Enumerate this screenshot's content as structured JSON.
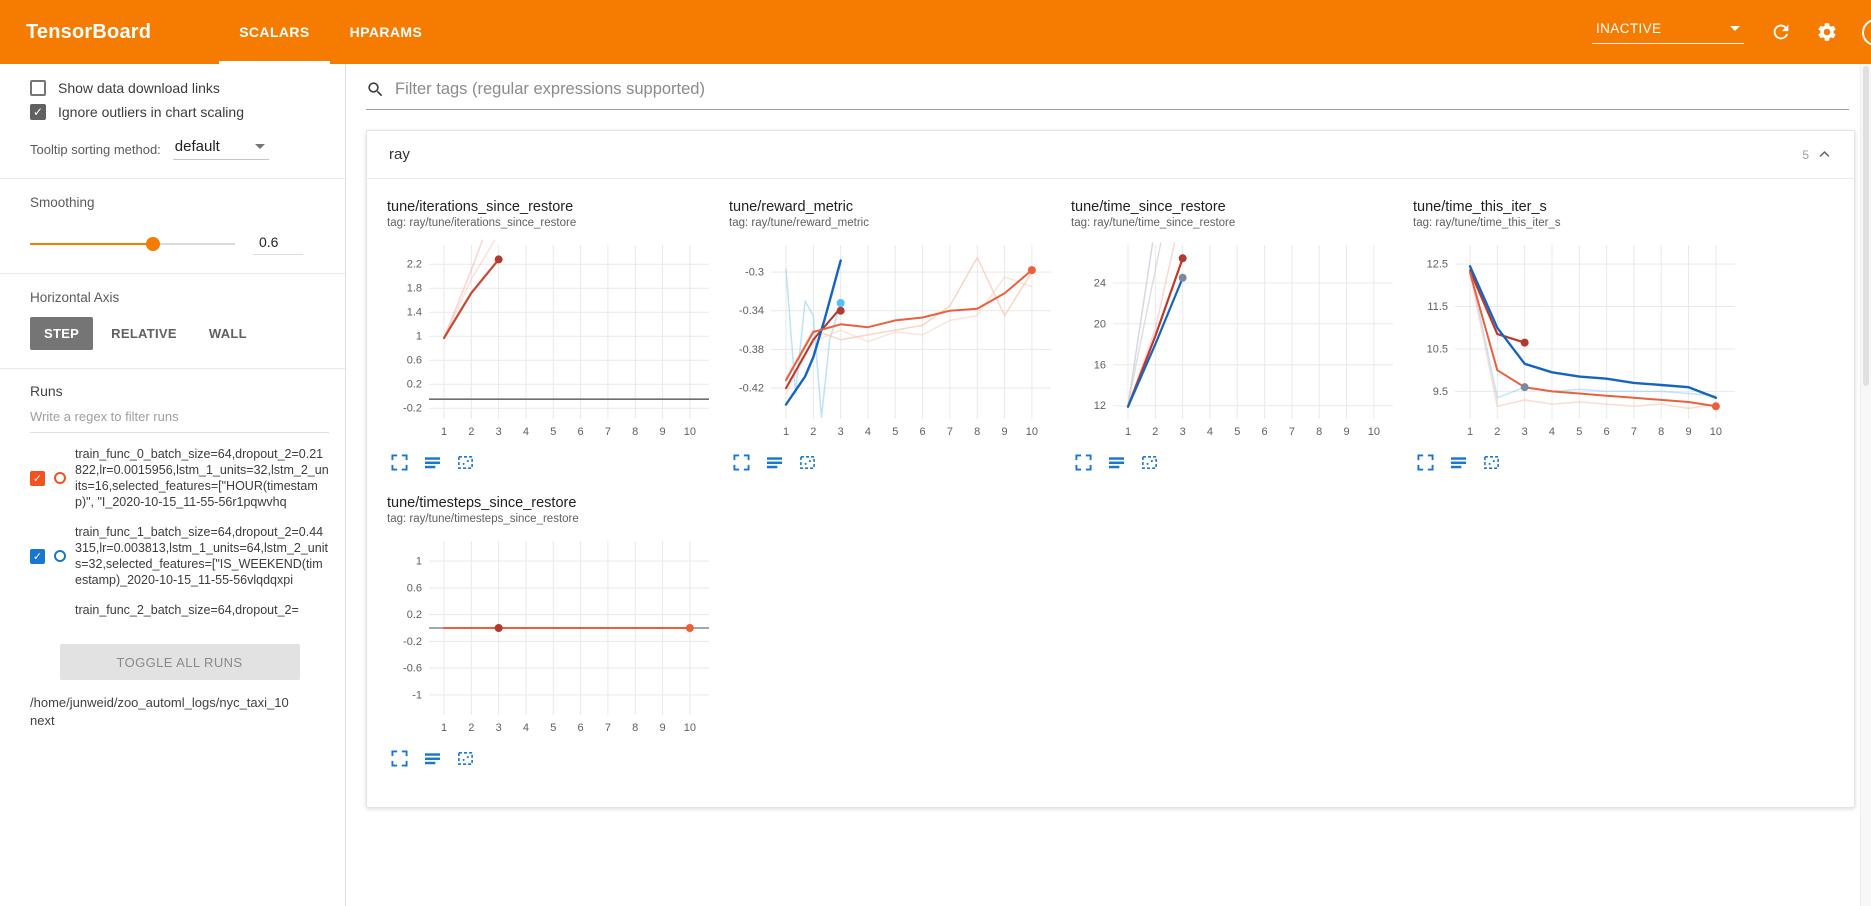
{
  "header": {
    "brand": "TensorBoard",
    "tabs": [
      {
        "label": "SCALARS"
      },
      {
        "label": "HPARAMS"
      }
    ],
    "active_tab": "SCALARS",
    "reload_dropdown": "INACTIVE",
    "help_glyph": "?"
  },
  "sidebar": {
    "show_download_label": "Show data download links",
    "ignore_outliers_label": "Ignore outliers in chart scaling",
    "tooltip_label": "Tooltip sorting method:",
    "tooltip_value": "default",
    "smoothing_label": "Smoothing",
    "smoothing_value": "0.6",
    "axis_label": "Horizontal Axis",
    "axis_options": [
      {
        "label": "STEP"
      },
      {
        "label": "RELATIVE"
      },
      {
        "label": "WALL"
      }
    ],
    "axis_selected": "STEP",
    "runs_label": "Runs",
    "runs_filter_placeholder": "Write a regex to filter runs",
    "runs": [
      {
        "label": "train_func_0_batch_size=64,dropout_2=0.21822,lr=0.0015956,lstm_1_units=32,lstm_2_units=16,selected_features=[\"HOUR(timestamp)\", \"I_2020-10-15_11-55-56r1pqwvhq",
        "checked": true,
        "color": "#f4511e"
      },
      {
        "label": "train_func_1_batch_size=64,dropout_2=0.44315,lr=0.003813,lstm_1_units=64,lstm_2_units=32,selected_features=[\"IS_WEEKEND(timestamp)_2020-10-15_11-55-56vlqdqxpi",
        "checked": true,
        "color": "#1976d2"
      },
      {
        "label": "train_func_2_batch_size=64,dropout_2=",
        "checked": null,
        "color": null
      }
    ],
    "toggle_all_label": "TOGGLE ALL RUNS",
    "log_dir": "/home/junweid/zoo_automl_logs/nyc_taxi_10next"
  },
  "main": {
    "filter_placeholder": "Filter tags (regular expressions supported)",
    "section": {
      "title": "ray",
      "count": "5"
    }
  },
  "chart_data": [
    {
      "type": "line",
      "title": "tune/iterations_since_restore",
      "tag": "tag: ray/tune/iterations_since_restore",
      "xticks": [
        1,
        2,
        3,
        4,
        5,
        6,
        7,
        8,
        9,
        10
      ],
      "xlim": [
        0.45,
        10.7
      ],
      "yticks": [
        -0.2,
        0.2,
        0.6,
        1,
        1.4,
        1.8,
        2.2
      ],
      "ylim": [
        -0.38,
        2.52
      ],
      "series": [
        {
          "color": "#f2a099",
          "opacity": 0.45,
          "width": 1.5,
          "points": [
            [
              1,
              0.97
            ],
            [
              2,
              2.1
            ],
            [
              2.4,
              2.6
            ]
          ]
        },
        {
          "color": "#f2b3ab",
          "opacity": 0.4,
          "width": 1.5,
          "points": [
            [
              1,
              0.97
            ],
            [
              2,
              1.95
            ],
            [
              2.85,
              2.6
            ]
          ]
        },
        {
          "color": "#c74a35",
          "opacity": 1,
          "width": 2.2,
          "points": [
            [
              1,
              0.97
            ],
            [
              2,
              1.72
            ],
            [
              3,
              2.28
            ]
          ]
        },
        {
          "color": "#6e6e6e",
          "opacity": 1,
          "width": 1.6,
          "points": [
            [
              0.45,
              -0.05
            ],
            [
              10.7,
              -0.05
            ]
          ]
        }
      ],
      "dots": [
        {
          "x": 3,
          "y": 2.28,
          "color": "#b03a2e"
        }
      ]
    },
    {
      "type": "line",
      "title": "tune/reward_metric",
      "tag": "tag: ray/tune/reward_metric",
      "xticks": [
        1,
        2,
        3,
        4,
        5,
        6,
        7,
        8,
        9,
        10
      ],
      "xlim": [
        0.45,
        10.7
      ],
      "yticks": [
        -0.42,
        -0.38,
        -0.34,
        -0.3
      ],
      "ylim": [
        -0.452,
        -0.272
      ],
      "series": [
        {
          "color": "#8fd0f2",
          "opacity": 0.6,
          "width": 1.5,
          "points": [
            [
              1,
              -0.297
            ],
            [
              1.35,
              -0.425
            ],
            [
              1.7,
              -0.33
            ],
            [
              2,
              -0.345
            ],
            [
              2.3,
              -0.45
            ],
            [
              2.6,
              -0.37
            ],
            [
              3,
              -0.332
            ]
          ]
        },
        {
          "color": "#f7b9a0",
          "opacity": 0.6,
          "width": 1.5,
          "points": [
            [
              1,
              -0.41
            ],
            [
              2,
              -0.36
            ],
            [
              3,
              -0.37
            ],
            [
              4,
              -0.365
            ],
            [
              5,
              -0.36
            ],
            [
              6,
              -0.355
            ],
            [
              7,
              -0.335
            ],
            [
              8,
              -0.285
            ],
            [
              9,
              -0.345
            ],
            [
              10,
              -0.3
            ]
          ]
        },
        {
          "color": "#f9cdbd",
          "opacity": 0.55,
          "width": 1.5,
          "points": [
            [
              1,
              -0.425
            ],
            [
              2,
              -0.372
            ],
            [
              3,
              -0.36
            ],
            [
              4,
              -0.372
            ],
            [
              5,
              -0.362
            ],
            [
              6,
              -0.365
            ],
            [
              7,
              -0.35
            ],
            [
              8,
              -0.345
            ],
            [
              9,
              -0.305
            ],
            [
              10,
              -0.315
            ]
          ]
        },
        {
          "color": "#b03a2e",
          "opacity": 1,
          "width": 2,
          "points": [
            [
              1,
              -0.42
            ],
            [
              2,
              -0.37
            ],
            [
              3,
              -0.337
            ]
          ]
        },
        {
          "color": "#1565c0",
          "opacity": 1,
          "width": 2.4,
          "points": [
            [
              1,
              -0.437
            ],
            [
              1.7,
              -0.408
            ],
            [
              2,
              -0.388
            ],
            [
              2.4,
              -0.35
            ],
            [
              3,
              -0.288
            ]
          ]
        },
        {
          "color": "#ec5f3d",
          "opacity": 1,
          "width": 2,
          "points": [
            [
              1,
              -0.412
            ],
            [
              2,
              -0.362
            ],
            [
              3,
              -0.354
            ],
            [
              4,
              -0.357
            ],
            [
              5,
              -0.35
            ],
            [
              6,
              -0.347
            ],
            [
              7,
              -0.34
            ],
            [
              8,
              -0.338
            ],
            [
              9,
              -0.322
            ],
            [
              10,
              -0.298
            ]
          ]
        }
      ],
      "dots": [
        {
          "x": 3,
          "y": -0.332,
          "color": "#4fc3f7"
        },
        {
          "x": 3,
          "y": -0.34,
          "color": "#b03a2e"
        },
        {
          "x": 10,
          "y": -0.298,
          "color": "#ec5f3d"
        }
      ]
    },
    {
      "type": "line",
      "title": "tune/time_since_restore",
      "tag": "tag: ray/tune/time_since_restore",
      "xticks": [
        1,
        2,
        3,
        4,
        5,
        6,
        7,
        8,
        9,
        10
      ],
      "xlim": [
        0.45,
        10.7
      ],
      "yticks": [
        12,
        16,
        20,
        24
      ],
      "ylim": [
        10.7,
        27.7
      ],
      "series": [
        {
          "color": "#b4aec7",
          "opacity": 0.5,
          "width": 1.5,
          "points": [
            [
              1,
              12
            ],
            [
              1.9,
              27.9
            ]
          ]
        },
        {
          "color": "#c9c9c9",
          "opacity": 0.6,
          "width": 1.5,
          "points": [
            [
              1,
              12.1
            ],
            [
              2.2,
              27.9
            ]
          ]
        },
        {
          "color": "#f2b3ab",
          "opacity": 0.5,
          "width": 1.5,
          "points": [
            [
              1,
              12
            ],
            [
              2,
              19.5
            ],
            [
              2.7,
              27.9
            ]
          ]
        },
        {
          "color": "#c0392b",
          "opacity": 1,
          "width": 2.2,
          "points": [
            [
              1,
              11.9
            ],
            [
              2,
              18.8
            ],
            [
              3,
              26.4
            ]
          ]
        },
        {
          "color": "#1565c0",
          "opacity": 1,
          "width": 2.2,
          "points": [
            [
              1,
              11.9
            ],
            [
              2,
              18
            ],
            [
              3,
              24.5
            ]
          ]
        }
      ],
      "dots": [
        {
          "x": 3,
          "y": 26.4,
          "color": "#b03a2e"
        },
        {
          "x": 3,
          "y": 24.5,
          "color": "#7a8ba1"
        }
      ]
    },
    {
      "type": "line",
      "title": "tune/time_this_iter_s",
      "tag": "tag: ray/tune/time_this_iter_s",
      "xticks": [
        1,
        2,
        3,
        4,
        5,
        6,
        7,
        8,
        9,
        10
      ],
      "xlim": [
        0.45,
        10.7
      ],
      "yticks": [
        9.5,
        10.5,
        11.5,
        12.5
      ],
      "ylim": [
        8.85,
        12.95
      ],
      "series": [
        {
          "color": "#8fd0f2",
          "opacity": 0.55,
          "width": 1.5,
          "points": [
            [
              1,
              12.4
            ],
            [
              2,
              9.35
            ],
            [
              3,
              9.6
            ],
            [
              4,
              9.5
            ],
            [
              5,
              9.55
            ],
            [
              6,
              9.5
            ],
            [
              7,
              9.5
            ],
            [
              8,
              9.5
            ],
            [
              9,
              9.45
            ],
            [
              10,
              9.4
            ]
          ]
        },
        {
          "color": "#f7b9a0",
          "opacity": 0.5,
          "width": 1.5,
          "points": [
            [
              1,
              12.3
            ],
            [
              2,
              9.15
            ],
            [
              3,
              9.3
            ],
            [
              4,
              9.2
            ],
            [
              5,
              9.25
            ],
            [
              6,
              9.2
            ],
            [
              7,
              9.15
            ],
            [
              8,
              9.2
            ],
            [
              9,
              9.1
            ],
            [
              10,
              9.2
            ]
          ]
        },
        {
          "color": "#c0392b",
          "opacity": 1,
          "width": 2.2,
          "points": [
            [
              1,
              12.35
            ],
            [
              2,
              10.85
            ],
            [
              3,
              10.65
            ]
          ]
        },
        {
          "color": "#1565c0",
          "opacity": 1,
          "width": 2.4,
          "points": [
            [
              1,
              12.45
            ],
            [
              2,
              11
            ],
            [
              3,
              10.15
            ],
            [
              4,
              9.95
            ],
            [
              5,
              9.85
            ],
            [
              6,
              9.8
            ],
            [
              7,
              9.7
            ],
            [
              8,
              9.65
            ],
            [
              9,
              9.6
            ],
            [
              10,
              9.35
            ]
          ]
        },
        {
          "color": "#ec5f3d",
          "opacity": 1,
          "width": 2,
          "points": [
            [
              1,
              12.3
            ],
            [
              2,
              10
            ],
            [
              3,
              9.6
            ],
            [
              4,
              9.5
            ],
            [
              5,
              9.45
            ],
            [
              6,
              9.4
            ],
            [
              7,
              9.35
            ],
            [
              8,
              9.3
            ],
            [
              9,
              9.25
            ],
            [
              10,
              9.15
            ]
          ]
        }
      ],
      "dots": [
        {
          "x": 3,
          "y": 10.65,
          "color": "#b03a2e"
        },
        {
          "x": 3,
          "y": 9.6,
          "color": "#7a8ba1"
        },
        {
          "x": 10,
          "y": 9.15,
          "color": "#ec5f3d"
        }
      ]
    },
    {
      "type": "line",
      "title": "tune/timesteps_since_restore",
      "tag": "tag: ray/tune/timesteps_since_restore",
      "xticks": [
        1,
        2,
        3,
        4,
        5,
        6,
        7,
        8,
        9,
        10
      ],
      "xlim": [
        0.45,
        10.7
      ],
      "yticks": [
        -1,
        -0.6,
        -0.2,
        0.2,
        0.6,
        1
      ],
      "ylim": [
        -1.3,
        1.3
      ],
      "series": [
        {
          "color": "#8a8a8a",
          "opacity": 1,
          "width": 1.6,
          "points": [
            [
              0.45,
              0
            ],
            [
              10.7,
              0
            ]
          ]
        },
        {
          "color": "#ec5f3d",
          "opacity": 1,
          "width": 2,
          "points": [
            [
              1,
              0
            ],
            [
              10,
              0
            ]
          ]
        }
      ],
      "dots": [
        {
          "x": 3,
          "y": 0,
          "color": "#b03a2e"
        },
        {
          "x": 10,
          "y": 0,
          "color": "#ec5f3d"
        }
      ]
    }
  ]
}
